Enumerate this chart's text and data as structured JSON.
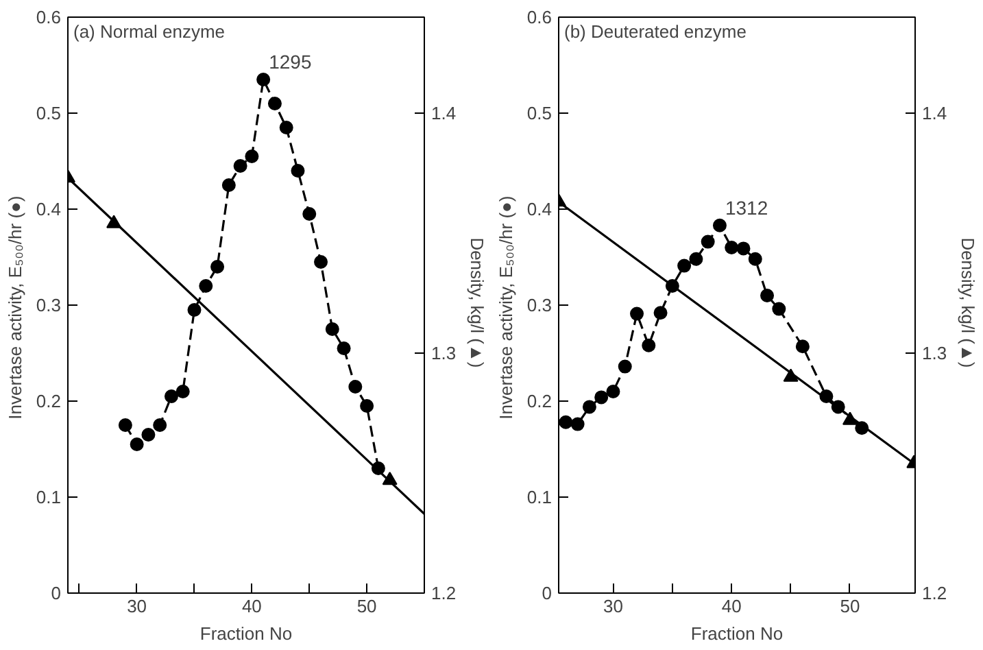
{
  "chart_data": [
    {
      "type": "line",
      "title": "(a) Normal enzyme",
      "xlabel": "Fraction No",
      "ylabel": "Invertase activity,  E₅₀₀/hr (●)",
      "y2label": "Density,  kg/l (▲)",
      "xlim": [
        24,
        55
      ],
      "xticks": [
        {
          "value": 25,
          "label": null
        },
        30,
        {
          "value": 35,
          "label": null
        },
        40,
        {
          "value": 45,
          "label": null
        },
        50
      ],
      "ylim": [
        0,
        0.6
      ],
      "yticks": [
        0,
        0.1,
        0.2,
        0.3,
        0.4,
        0.5,
        0.6
      ],
      "y2lim": [
        1.2,
        1.44
      ],
      "y2ticks": [
        1.2,
        1.3,
        1.4
      ],
      "annotations": [
        {
          "text": "1295",
          "x": 41,
          "y": 0.535
        }
      ],
      "series": [
        {
          "type": "line",
          "color": "#000000",
          "marker": "circle",
          "line_style": "dashed",
          "x": [
            29,
            30,
            31,
            32,
            33,
            34,
            35,
            36,
            37,
            38,
            39,
            40,
            41,
            42,
            43,
            44,
            45,
            46,
            47,
            48,
            49,
            50,
            51
          ],
          "values": [
            0.175,
            0.155,
            0.165,
            0.175,
            0.205,
            0.21,
            0.295,
            0.32,
            0.34,
            0.425,
            0.445,
            0.455,
            0.535,
            0.51,
            0.485,
            0.44,
            0.395,
            0.345,
            0.275,
            0.255,
            0.215,
            0.195,
            0.13
          ]
        },
        {
          "type": "scatter",
          "color": "#000000",
          "marker": "triangle",
          "axis": "y2",
          "x": [
            24,
            28,
            52
          ],
          "values": [
            1.373,
            1.354,
            1.247
          ]
        },
        {
          "type": "line",
          "color": "#000000",
          "marker": "none",
          "line_style": "solid",
          "axis": "y2",
          "x": [
            24,
            55
          ],
          "values": [
            1.373,
            1.233
          ]
        }
      ]
    },
    {
      "type": "line",
      "title": "(b) Deuterated enzyme",
      "xlabel": "Fraction No",
      "ylabel": "Invertase activity,  E₅₀₀/hr (●)",
      "y2label": "Density,  kg/l (▲)",
      "xlim": [
        25.4,
        55.5
      ],
      "xticks": [
        30,
        {
          "value": 35,
          "label": null
        },
        40,
        {
          "value": 45,
          "label": null
        },
        50
      ],
      "ylim": [
        0,
        0.6
      ],
      "yticks": [
        0,
        0.1,
        0.2,
        0.3,
        0.4,
        0.5,
        0.6
      ],
      "y2lim": [
        1.2,
        1.44
      ],
      "y2ticks": [
        1.2,
        1.3,
        1.4
      ],
      "annotations": [
        {
          "text": "1312",
          "x": 39,
          "y": 0.383
        }
      ],
      "series": [
        {
          "type": "line",
          "color": "#000000",
          "marker": "circle",
          "line_style": "dashed",
          "x": [
            26,
            27,
            28,
            29,
            30,
            31,
            32,
            33,
            34,
            35,
            36,
            37,
            38,
            39,
            40,
            41,
            42,
            43,
            44,
            46,
            48,
            49,
            51
          ],
          "values": [
            0.178,
            0.176,
            0.194,
            0.204,
            0.21,
            0.236,
            0.291,
            0.258,
            0.292,
            0.32,
            0.341,
            0.348,
            0.366,
            0.383,
            0.36,
            0.359,
            0.348,
            0.31,
            0.296,
            0.257,
            0.205,
            0.194,
            0.172
          ]
        },
        {
          "type": "scatter",
          "color": "#000000",
          "marker": "triangle",
          "axis": "y2",
          "x": [
            25.4,
            45,
            50,
            55.4
          ],
          "values": [
            1.363,
            1.29,
            1.272,
            1.254
          ]
        },
        {
          "type": "line",
          "color": "#000000",
          "marker": "none",
          "line_style": "solid",
          "axis": "y2",
          "x": [
            25.4,
            55.4
          ],
          "values": [
            1.363,
            1.254
          ]
        }
      ]
    }
  ]
}
